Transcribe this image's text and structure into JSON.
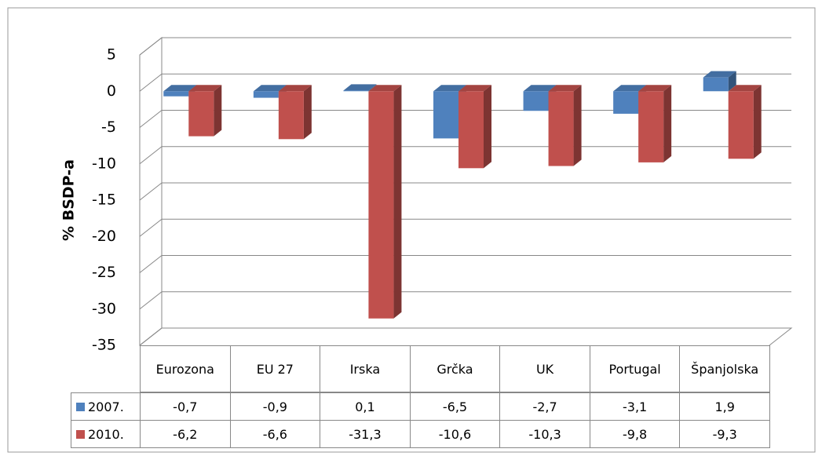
{
  "chart_data": {
    "type": "bar3d",
    "y_label": "% BSDP-a",
    "categories": [
      "Eurozona",
      "EU 27",
      "Irska",
      "Grčka",
      "UK",
      "Portugal",
      "Španjolska"
    ],
    "series": [
      {
        "name": "2007.",
        "color": "#4f81bd",
        "values": [
          -0.7,
          -0.9,
          0.1,
          -6.5,
          -2.7,
          -3.1,
          1.9
        ],
        "value_labels": [
          "-0,7",
          "-0,9",
          "0,1",
          "-6,5",
          "-2,7",
          "-3,1",
          "1,9"
        ]
      },
      {
        "name": "2010.",
        "color": "#c0504d",
        "values": [
          -6.2,
          -6.6,
          -31.3,
          -10.6,
          -10.3,
          -9.8,
          -9.3
        ],
        "value_labels": [
          "-6,2",
          "-6,6",
          "-31,3",
          "-10,6",
          "-10,3",
          "-9,8",
          "-9,3"
        ]
      }
    ],
    "ylim": [
      -35,
      5
    ],
    "yticks": [
      5,
      0,
      -5,
      -10,
      -15,
      -20,
      -25,
      -30,
      -35
    ],
    "grid": true
  }
}
